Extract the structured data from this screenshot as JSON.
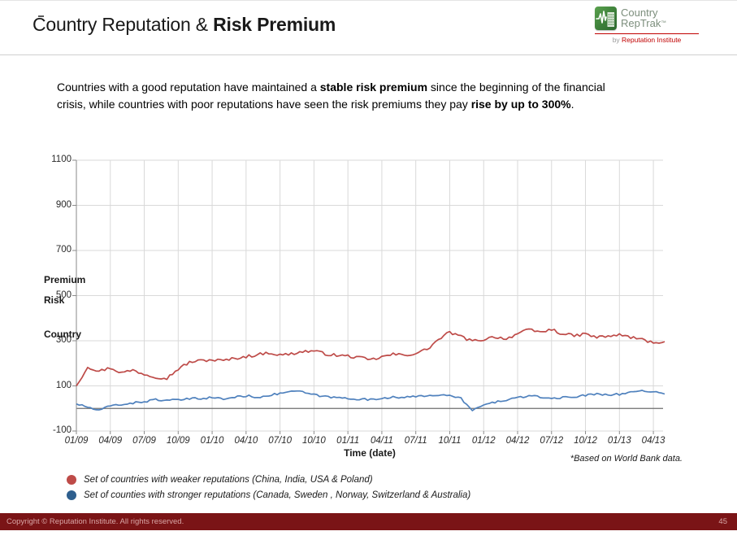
{
  "header": {
    "title_regular": "Country Reputation & ",
    "title_bold": "Risk Premium",
    "logo": {
      "line1": "Country",
      "line2": "RepTrak",
      "tm": "™",
      "tagline_by": "by ",
      "tagline_brand": "Reputation Institute"
    }
  },
  "intro": {
    "segments": [
      {
        "t": "Countries with a good reputation have maintained a "
      },
      {
        "t": "stable risk premium",
        "b": true
      },
      {
        "t": " since the beginning of the financial"
      },
      {
        "br": true
      },
      {
        "t": "crisis, while countries with poor reputations have seen the risk premiums they pay "
      },
      {
        "t": "rise by up to 300%",
        "b": true
      },
      {
        "t": "."
      }
    ]
  },
  "chart_data": {
    "type": "line",
    "title": "",
    "xlabel": "Time (date)",
    "ylabel": "Country Risk Premium",
    "ylabel_words": [
      "Premium",
      "Risk",
      "Country"
    ],
    "ylim": [
      -100,
      1100
    ],
    "yticks": [
      1100,
      900,
      700,
      500,
      300,
      100,
      -100
    ],
    "xticks": [
      "01/09",
      "04/09",
      "07/09",
      "10/09",
      "01/10",
      "04/10",
      "07/10",
      "10/10",
      "01/11",
      "04/11",
      "07/11",
      "10/11",
      "01/12",
      "04/12",
      "07/12",
      "10/12",
      "01/13",
      "04/13"
    ],
    "x_frequency": "monthly",
    "x_start": "01/09",
    "x_end": "05/13",
    "grid": true,
    "legend_position": "below",
    "footnote": "*Based on World Bank data.",
    "series": [
      {
        "name": "Set of countries with weaker reputations (China, India, USA & Poland)",
        "color": "#BE4B48",
        "values": [
          100,
          185,
          165,
          180,
          158,
          170,
          152,
          140,
          134,
          175,
          205,
          212,
          215,
          212,
          222,
          230,
          238,
          248,
          236,
          242,
          252,
          255,
          242,
          235,
          232,
          225,
          215,
          228,
          240,
          236,
          244,
          262,
          305,
          338,
          318,
          298,
          306,
          318,
          308,
          332,
          348,
          338,
          350,
          330,
          322,
          330,
          315,
          320,
          326,
          316,
          305,
          292,
          296
        ]
      },
      {
        "name": "Set of counties with stronger reputations (Canada, Sweden , Norway, Switzerland & Australia)",
        "color": "#4F81BD",
        "values": [
          20,
          6,
          -10,
          12,
          18,
          24,
          30,
          40,
          34,
          38,
          42,
          45,
          48,
          42,
          50,
          56,
          50,
          58,
          66,
          78,
          72,
          60,
          52,
          48,
          45,
          42,
          38,
          45,
          52,
          48,
          52,
          58,
          60,
          55,
          45,
          -10,
          15,
          28,
          38,
          48,
          55,
          50,
          45,
          48,
          52,
          58,
          65,
          62,
          62,
          72,
          80,
          74,
          64
        ]
      }
    ]
  },
  "legend": {
    "items": [
      {
        "color": "#BE4B48",
        "label": "Set of countries with weaker reputations (China, India, USA & Poland)"
      },
      {
        "color": "#2E5F8E",
        "label": "Set of counties with stronger reputations (Canada, Sweden , Norway, Switzerland & Australia)"
      }
    ]
  },
  "footer": {
    "copyright": "Copyright © Reputation Institute. All rights reserved.",
    "page": "45"
  }
}
